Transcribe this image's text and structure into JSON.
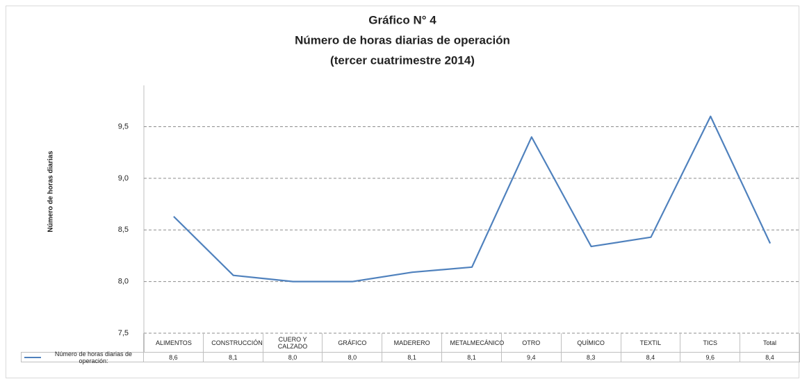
{
  "chart_data": {
    "type": "line",
    "title": [
      "Gráfico N° 4",
      "Número de horas diarias de operación",
      "(tercer cuatrimestre 2014)"
    ],
    "y_label": "Número de horas diarias",
    "categories": [
      "ALIMENTOS",
      "CONSTRUCCIÓN",
      "CUERO Y CALZADO",
      "GRÁFICO",
      "MADERERO",
      "METALMECÁNICO",
      "OTRO",
      "QUÍMICO",
      "TEXTIL",
      "TICS",
      "Total"
    ],
    "series": [
      {
        "name": "Número de horas diarias de operación:",
        "color": "#4f81bd",
        "values": [
          8.63,
          8.06,
          8.0,
          8.0,
          8.09,
          8.14,
          9.4,
          8.34,
          8.43,
          9.6,
          8.37
        ],
        "value_labels": [
          "8,6",
          "8,1",
          "8,0",
          "8,0",
          "8,1",
          "8,1",
          "9,4",
          "8,3",
          "8,4",
          "9,6",
          "8,4"
        ]
      }
    ],
    "ylim": [
      7.5,
      9.9
    ],
    "yticks": [
      {
        "value": 7.5,
        "label": "7,5"
      },
      {
        "value": 8.0,
        "label": "8,0"
      },
      {
        "value": 8.5,
        "label": "8,5"
      },
      {
        "value": 9.0,
        "label": "9,0"
      },
      {
        "value": 9.5,
        "label": "9,5"
      }
    ],
    "grid": true
  }
}
